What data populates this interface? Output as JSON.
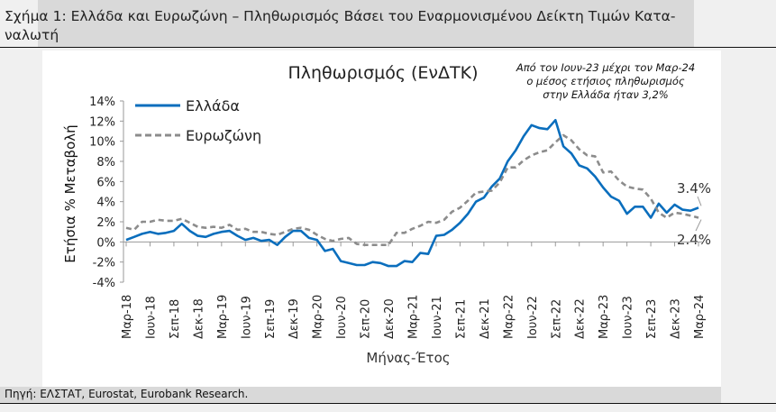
{
  "figure_title": "Σχήμα 1: Ελλάδα και Ευρωζώνη – Πληθωρισμός Βάσει του Εναρμονισμένου Δείκτη Τιμών Κατα-\nναλωτή",
  "source": "Πηγή: ΕΛΣΤΑΤ, Eurostat, Eurobank Research.",
  "chart_data": {
    "type": "line",
    "title": "Πληθωρισμός (ΕνΔΤΚ)",
    "annotation": [
      "Από τον Ιουν-23 μέχρι τον Μαρ-24",
      "ο μέσος ετήσιος πληθωρισμός",
      "στην Ελλάδα ήταν 3,2%"
    ],
    "xlabel": "Μήνας-Έτος",
    "ylabel": "Ετήσια % Μεταβολή",
    "ylim": [
      -4,
      14
    ],
    "yticks": [
      "-4%",
      "-2%",
      "0%",
      "2%",
      "4%",
      "6%",
      "8%",
      "10%",
      "12%",
      "14%"
    ],
    "x_start": "Μαρ-18",
    "x_end": "Μαρ-24",
    "xtick_labels": [
      "Μαρ-18",
      "Ιουν-18",
      "Σεπ-18",
      "Δεκ-18",
      "Μαρ-19",
      "Ιουν-19",
      "Σεπ-19",
      "Δεκ-19",
      "Μαρ-20",
      "Ιουν-20",
      "Σεπ-20",
      "Δεκ-20",
      "Μαρ-21",
      "Ιουν-21",
      "Σεπ-21",
      "Δεκ-21",
      "Μαρ-22",
      "Ιουν-22",
      "Σεπ-22",
      "Δεκ-22",
      "Μαρ-23",
      "Ιουν-23",
      "Σεπ-23",
      "Δεκ-23",
      "Μαρ-24"
    ],
    "legend_position": "top-left",
    "grid": false,
    "series": [
      {
        "name": "Ελλάδα",
        "color": "#0a6ebd",
        "style": "solid",
        "end_label": "3.4%",
        "values": [
          0.2,
          0.5,
          0.8,
          1.0,
          0.8,
          0.9,
          1.1,
          1.8,
          1.1,
          0.6,
          0.5,
          0.8,
          1.0,
          1.1,
          0.6,
          0.2,
          0.4,
          0.1,
          0.2,
          -0.3,
          0.5,
          1.1,
          1.1,
          0.4,
          0.2,
          -0.9,
          -0.7,
          -1.9,
          -2.1,
          -2.3,
          -2.3,
          -2.0,
          -2.1,
          -2.4,
          -2.4,
          -1.9,
          -2.0,
          -1.1,
          -1.2,
          0.6,
          0.7,
          1.2,
          1.9,
          2.8,
          4.0,
          4.4,
          5.5,
          6.3,
          8.0,
          9.1,
          10.5,
          11.6,
          11.3,
          11.2,
          12.1,
          9.5,
          8.8,
          7.6,
          7.3,
          6.5,
          5.4,
          4.5,
          4.1,
          2.8,
          3.5,
          3.5,
          2.4,
          3.8,
          2.9,
          3.7,
          3.2,
          3.1,
          3.4
        ]
      },
      {
        "name": "Ευρωζώνη",
        "color": "#8c8c8c",
        "style": "dashed",
        "end_label": "2.4%",
        "values": [
          1.4,
          1.2,
          2.0,
          2.0,
          2.2,
          2.1,
          2.1,
          2.3,
          1.9,
          1.5,
          1.4,
          1.5,
          1.4,
          1.7,
          1.2,
          1.3,
          1.0,
          1.0,
          0.8,
          0.7,
          1.0,
          1.3,
          1.4,
          1.2,
          0.7,
          0.3,
          0.1,
          0.3,
          0.4,
          -0.2,
          -0.3,
          -0.3,
          -0.3,
          -0.3,
          0.9,
          0.9,
          1.3,
          1.6,
          2.0,
          1.9,
          2.2,
          3.0,
          3.4,
          4.1,
          4.9,
          5.0,
          5.1,
          5.9,
          7.4,
          7.4,
          8.1,
          8.6,
          8.9,
          9.1,
          9.9,
          10.6,
          10.1,
          9.2,
          8.6,
          8.5,
          6.9,
          7.0,
          6.1,
          5.5,
          5.3,
          5.2,
          4.3,
          2.9,
          2.4,
          2.9,
          2.8,
          2.6,
          2.4
        ]
      }
    ]
  }
}
